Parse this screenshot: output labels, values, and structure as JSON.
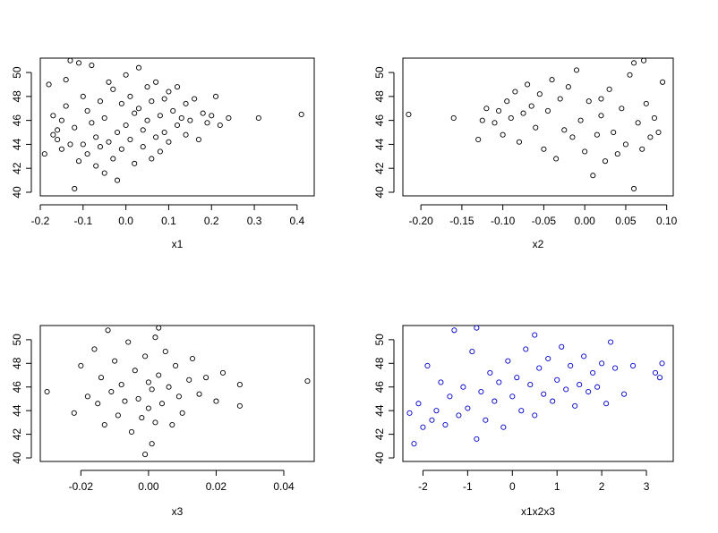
{
  "chart_data": [
    {
      "type": "scatter",
      "xlabel": "x1",
      "ylabel": "",
      "xlim": [
        -0.2,
        0.44
      ],
      "ylim": [
        39.7,
        51.2
      ],
      "xticks": [
        -0.2,
        -0.1,
        0.0,
        0.1,
        0.2,
        0.3,
        0.4
      ],
      "xtick_labels": [
        "-0.2",
        "-0.1",
        "0.0",
        "0.1",
        "0.2",
        "0.3",
        "0.4"
      ],
      "yticks": [
        40,
        42,
        44,
        46,
        48,
        50
      ],
      "ytick_labels": [
        "40",
        "42",
        "44",
        "46",
        "48",
        "50"
      ],
      "color": "#000000",
      "points": [
        [
          -0.19,
          43.2
        ],
        [
          -0.18,
          49.0
        ],
        [
          -0.17,
          44.8
        ],
        [
          -0.17,
          46.4
        ],
        [
          -0.16,
          44.4
        ],
        [
          -0.16,
          45.2
        ],
        [
          -0.15,
          43.6
        ],
        [
          -0.15,
          46.0
        ],
        [
          -0.14,
          49.4
        ],
        [
          -0.14,
          47.2
        ],
        [
          -0.13,
          51.0
        ],
        [
          -0.13,
          44.0
        ],
        [
          -0.12,
          40.3
        ],
        [
          -0.12,
          45.4
        ],
        [
          -0.11,
          50.8
        ],
        [
          -0.11,
          42.6
        ],
        [
          -0.1,
          48.0
        ],
        [
          -0.1,
          44.0
        ],
        [
          -0.09,
          46.8
        ],
        [
          -0.09,
          43.2
        ],
        [
          -0.08,
          45.8
        ],
        [
          -0.08,
          50.6
        ],
        [
          -0.07,
          42.2
        ],
        [
          -0.07,
          44.6
        ],
        [
          -0.06,
          47.6
        ],
        [
          -0.06,
          43.8
        ],
        [
          -0.05,
          41.6
        ],
        [
          -0.05,
          46.2
        ],
        [
          -0.04,
          49.2
        ],
        [
          -0.04,
          44.2
        ],
        [
          -0.03,
          42.8
        ],
        [
          -0.03,
          48.6
        ],
        [
          -0.02,
          45.0
        ],
        [
          -0.02,
          41.0
        ],
        [
          -0.01,
          47.4
        ],
        [
          -0.01,
          43.6
        ],
        [
          0.0,
          49.8
        ],
        [
          0.0,
          45.6
        ],
        [
          0.01,
          44.4
        ],
        [
          0.01,
          48.0
        ],
        [
          0.02,
          42.4
        ],
        [
          0.02,
          46.6
        ],
        [
          0.03,
          50.4
        ],
        [
          0.03,
          47.0
        ],
        [
          0.04,
          43.8
        ],
        [
          0.04,
          45.2
        ],
        [
          0.05,
          48.8
        ],
        [
          0.05,
          46.0
        ],
        [
          0.06,
          42.8
        ],
        [
          0.06,
          47.6
        ],
        [
          0.07,
          44.6
        ],
        [
          0.07,
          49.2
        ],
        [
          0.08,
          46.4
        ],
        [
          0.08,
          43.4
        ],
        [
          0.09,
          47.8
        ],
        [
          0.09,
          45.0
        ],
        [
          0.1,
          48.4
        ],
        [
          0.1,
          44.2
        ],
        [
          0.11,
          46.8
        ],
        [
          0.12,
          45.6
        ],
        [
          0.12,
          48.8
        ],
        [
          0.13,
          46.2
        ],
        [
          0.14,
          47.4
        ],
        [
          0.14,
          44.8
        ],
        [
          0.15,
          46.0
        ],
        [
          0.16,
          47.8
        ],
        [
          0.17,
          44.4
        ],
        [
          0.18,
          46.6
        ],
        [
          0.19,
          45.8
        ],
        [
          0.2,
          46.4
        ],
        [
          0.21,
          48.0
        ],
        [
          0.22,
          45.6
        ],
        [
          0.24,
          46.2
        ],
        [
          0.31,
          46.2
        ],
        [
          0.41,
          46.5
        ]
      ]
    },
    {
      "type": "scatter",
      "xlabel": "x2",
      "ylabel": "",
      "xlim": [
        -0.222,
        0.108
      ],
      "ylim": [
        39.7,
        51.2
      ],
      "xticks": [
        -0.2,
        -0.15,
        -0.1,
        -0.05,
        0.0,
        0.05,
        0.1
      ],
      "xtick_labels": [
        "-0.20",
        "-0.15",
        "-0.10",
        "-0.05",
        "0.00",
        "0.05",
        "0.10"
      ],
      "yticks": [
        40,
        42,
        44,
        46,
        48,
        50
      ],
      "ytick_labels": [
        "40",
        "42",
        "44",
        "46",
        "48",
        "50"
      ],
      "color": "#000000",
      "points": [
        [
          -0.215,
          46.5
        ],
        [
          -0.16,
          46.2
        ],
        [
          -0.13,
          44.4
        ],
        [
          -0.125,
          46.0
        ],
        [
          -0.12,
          47.0
        ],
        [
          -0.11,
          45.8
        ],
        [
          -0.105,
          46.8
        ],
        [
          -0.1,
          44.8
        ],
        [
          -0.095,
          47.6
        ],
        [
          -0.09,
          46.2
        ],
        [
          -0.085,
          48.4
        ],
        [
          -0.08,
          44.2
        ],
        [
          -0.075,
          46.6
        ],
        [
          -0.07,
          49.0
        ],
        [
          -0.065,
          47.2
        ],
        [
          -0.06,
          45.4
        ],
        [
          -0.055,
          48.2
        ],
        [
          -0.05,
          43.6
        ],
        [
          -0.045,
          46.8
        ],
        [
          -0.04,
          49.4
        ],
        [
          -0.035,
          42.8
        ],
        [
          -0.03,
          47.8
        ],
        [
          -0.025,
          45.2
        ],
        [
          -0.02,
          48.8
        ],
        [
          -0.015,
          44.6
        ],
        [
          -0.01,
          50.2
        ],
        [
          -0.005,
          46.0
        ],
        [
          0.0,
          43.4
        ],
        [
          0.005,
          47.6
        ],
        [
          0.01,
          41.4
        ],
        [
          0.015,
          44.8
        ],
        [
          0.02,
          46.4
        ],
        [
          0.025,
          42.6
        ],
        [
          0.03,
          48.6
        ],
        [
          0.035,
          45.0
        ],
        [
          0.04,
          43.2
        ],
        [
          0.045,
          47.0
        ],
        [
          0.05,
          44.0
        ],
        [
          0.055,
          49.8
        ],
        [
          0.06,
          40.3
        ],
        [
          0.065,
          45.8
        ],
        [
          0.07,
          43.6
        ],
        [
          0.075,
          47.4
        ],
        [
          0.08,
          44.6
        ],
        [
          0.085,
          46.2
        ],
        [
          0.09,
          45.0
        ],
        [
          0.095,
          49.2
        ],
        [
          0.06,
          50.8
        ],
        [
          0.072,
          51.0
        ],
        [
          0.02,
          47.8
        ]
      ]
    },
    {
      "type": "scatter",
      "xlabel": "x3",
      "ylabel": "",
      "xlim": [
        -0.032,
        0.049
      ],
      "ylim": [
        39.7,
        51.2
      ],
      "xticks": [
        -0.02,
        0.0,
        0.02,
        0.04
      ],
      "xtick_labels": [
        "-0.02",
        "0.00",
        "0.02",
        "0.04"
      ],
      "yticks": [
        40,
        42,
        44,
        46,
        48,
        50
      ],
      "ytick_labels": [
        "40",
        "42",
        "44",
        "46",
        "48",
        "50"
      ],
      "color": "#000000",
      "points": [
        [
          -0.03,
          45.6
        ],
        [
          -0.022,
          43.8
        ],
        [
          -0.02,
          47.8
        ],
        [
          -0.018,
          45.2
        ],
        [
          -0.016,
          49.2
        ],
        [
          -0.015,
          44.6
        ],
        [
          -0.014,
          46.8
        ],
        [
          -0.013,
          42.8
        ],
        [
          -0.012,
          50.8
        ],
        [
          -0.011,
          45.6
        ],
        [
          -0.01,
          48.2
        ],
        [
          -0.009,
          43.6
        ],
        [
          -0.008,
          46.2
        ],
        [
          -0.007,
          44.8
        ],
        [
          -0.006,
          49.8
        ],
        [
          -0.005,
          42.2
        ],
        [
          -0.004,
          47.4
        ],
        [
          -0.003,
          45.0
        ],
        [
          -0.002,
          43.4
        ],
        [
          -0.001,
          48.6
        ],
        [
          0.0,
          44.2
        ],
        [
          0.0,
          46.4
        ],
        [
          0.001,
          41.2
        ],
        [
          0.001,
          45.8
        ],
        [
          0.002,
          50.2
        ],
        [
          0.002,
          43.0
        ],
        [
          0.003,
          47.0
        ],
        [
          0.004,
          44.6
        ],
        [
          0.005,
          49.0
        ],
        [
          0.006,
          46.0
        ],
        [
          0.007,
          42.8
        ],
        [
          0.008,
          47.8
        ],
        [
          0.009,
          45.2
        ],
        [
          0.01,
          43.8
        ],
        [
          0.012,
          46.6
        ],
        [
          0.013,
          48.4
        ],
        [
          0.015,
          45.4
        ],
        [
          0.017,
          46.8
        ],
        [
          0.02,
          44.8
        ],
        [
          0.022,
          47.2
        ],
        [
          0.027,
          46.2
        ],
        [
          0.027,
          44.4
        ],
        [
          0.047,
          46.5
        ],
        [
          -0.001,
          40.3
        ],
        [
          0.003,
          51.0
        ]
      ]
    },
    {
      "type": "scatter",
      "xlabel": "x1x2x3",
      "ylabel": "",
      "xlim": [
        -2.45,
        3.6
      ],
      "ylim": [
        39.7,
        51.2
      ],
      "xticks": [
        -2,
        -1,
        0,
        1,
        2,
        3
      ],
      "xtick_labels": [
        "-2",
        "-1",
        "0",
        "1",
        "2",
        "3"
      ],
      "yticks": [
        40,
        42,
        44,
        46,
        48,
        50
      ],
      "ytick_labels": [
        "40",
        "42",
        "44",
        "46",
        "48",
        "50"
      ],
      "color": "#0000CC",
      "points": [
        [
          -2.3,
          43.8
        ],
        [
          -2.2,
          41.2
        ],
        [
          -2.1,
          44.6
        ],
        [
          -2.0,
          42.6
        ],
        [
          -1.9,
          47.8
        ],
        [
          -1.8,
          43.2
        ],
        [
          -1.7,
          44.0
        ],
        [
          -1.6,
          46.4
        ],
        [
          -1.5,
          42.8
        ],
        [
          -1.4,
          45.2
        ],
        [
          -1.3,
          50.8
        ],
        [
          -1.2,
          43.6
        ],
        [
          -1.1,
          46.0
        ],
        [
          -1.0,
          44.2
        ],
        [
          -0.9,
          49.0
        ],
        [
          -0.8,
          41.6
        ],
        [
          -0.7,
          45.6
        ],
        [
          -0.6,
          43.2
        ],
        [
          -0.5,
          47.2
        ],
        [
          -0.4,
          44.8
        ],
        [
          -0.3,
          46.4
        ],
        [
          -0.2,
          42.6
        ],
        [
          -0.1,
          48.2
        ],
        [
          0.0,
          45.2
        ],
        [
          0.1,
          46.8
        ],
        [
          0.2,
          44.0
        ],
        [
          0.3,
          49.2
        ],
        [
          0.4,
          46.2
        ],
        [
          0.5,
          43.6
        ],
        [
          0.6,
          47.6
        ],
        [
          0.7,
          45.4
        ],
        [
          0.8,
          48.4
        ],
        [
          0.9,
          44.8
        ],
        [
          1.0,
          46.6
        ],
        [
          1.1,
          49.4
        ],
        [
          1.2,
          45.8
        ],
        [
          1.3,
          47.8
        ],
        [
          1.4,
          44.4
        ],
        [
          1.5,
          46.2
        ],
        [
          1.6,
          48.6
        ],
        [
          1.7,
          45.6
        ],
        [
          1.8,
          47.2
        ],
        [
          1.9,
          46.0
        ],
        [
          2.0,
          48.0
        ],
        [
          2.1,
          44.6
        ],
        [
          2.2,
          49.8
        ],
        [
          2.3,
          47.6
        ],
        [
          2.5,
          45.4
        ],
        [
          2.7,
          47.8
        ],
        [
          3.2,
          47.2
        ],
        [
          3.3,
          46.8
        ],
        [
          3.35,
          48.0
        ],
        [
          -0.8,
          51.0
        ],
        [
          0.5,
          50.4
        ]
      ]
    }
  ]
}
